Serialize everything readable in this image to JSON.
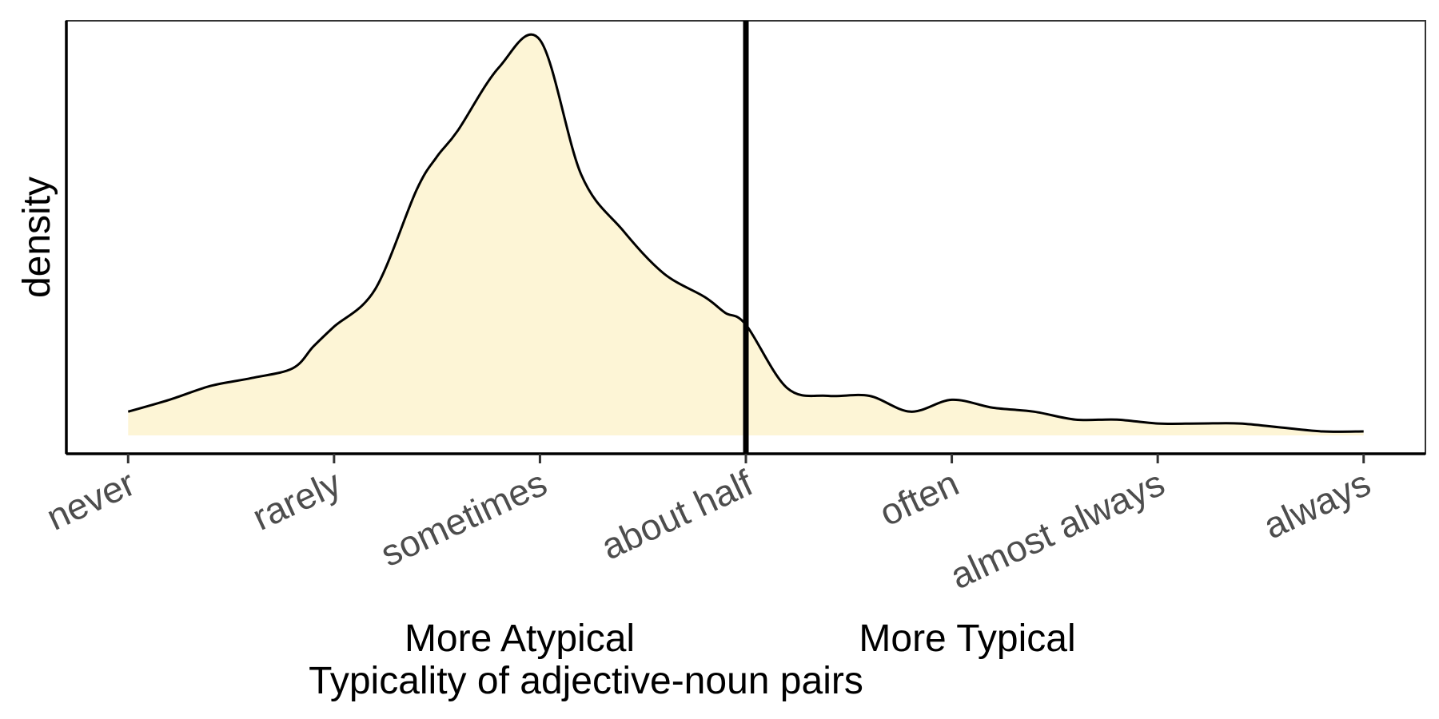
{
  "chart_data": {
    "type": "area",
    "title": "",
    "xlabel": "Typicality of adjective-noun pairs",
    "ylabel": "density",
    "categories": [
      "never",
      "rarely",
      "sometimes",
      "about half",
      "often",
      "almost always",
      "always"
    ],
    "xlim": [
      -0.3,
      6.3
    ],
    "ylim": [
      0,
      1.0
    ],
    "y_ticks_shown": false,
    "vline": {
      "x": 3
    },
    "annotations": {
      "left": "More Atypical",
      "right": "More Typical"
    },
    "fill_color": "#fdf5d6",
    "line_color": "#000000",
    "x": [
      0,
      0.2,
      0.4,
      0.6,
      0.8,
      0.9,
      1.0,
      1.2,
      1.4,
      1.5,
      1.6,
      1.8,
      2.0,
      2.2,
      2.4,
      2.6,
      2.8,
      2.9,
      3.0,
      3.2,
      3.4,
      3.6,
      3.8,
      4.0,
      4.2,
      4.4,
      4.6,
      4.8,
      5.0,
      5.2,
      5.4,
      5.6,
      5.8,
      6.0
    ],
    "y": [
      0.06,
      0.09,
      0.125,
      0.145,
      0.17,
      0.225,
      0.275,
      0.37,
      0.62,
      0.705,
      0.77,
      0.93,
      1.0,
      0.66,
      0.52,
      0.41,
      0.35,
      0.31,
      0.28,
      0.12,
      0.1,
      0.1,
      0.06,
      0.09,
      0.07,
      0.06,
      0.04,
      0.04,
      0.03,
      0.03,
      0.03,
      0.02,
      0.01,
      0.01
    ]
  }
}
